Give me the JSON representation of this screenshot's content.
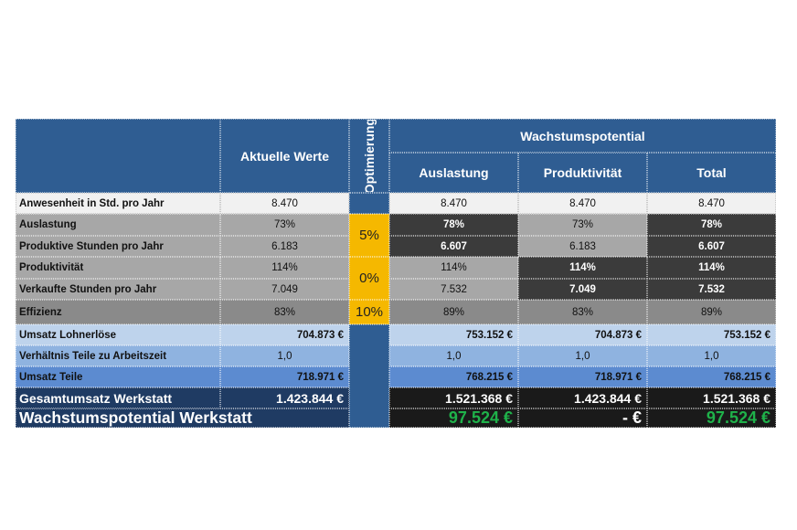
{
  "table": {
    "header": {
      "aktuelle": "Aktuelle Werte",
      "optimierung": "Optimierung",
      "wachstum": "Wachstumspotential",
      "auslastung": "Auslastung",
      "produktivitaet": "Produktivität",
      "total": "Total"
    },
    "rows": [
      {
        "label": "Anwesenheit in Std. pro Jahr",
        "aktuell": "8.470",
        "ausl": "8.470",
        "prod": "8.470",
        "total": "8.470"
      },
      {
        "label": "Auslastung",
        "aktuell": "73%",
        "ausl": "78%",
        "prod": "73%",
        "total": "78%"
      },
      {
        "label": "Produktive Stunden pro Jahr",
        "aktuell": "6.183",
        "ausl": "6.607",
        "prod": "6.183",
        "total": "6.607"
      },
      {
        "label": "Produktivität",
        "aktuell": "114%",
        "ausl": "114%",
        "prod": "114%",
        "total": "114%"
      },
      {
        "label": "Verkaufte Stunden pro Jahr",
        "aktuell": "7.049",
        "ausl": "7.532",
        "prod": "7.049",
        "total": "7.532"
      },
      {
        "label": "Effizienz",
        "aktuell": "83%",
        "ausl": "89%",
        "prod": "83%",
        "total": "89%"
      },
      {
        "label": "Umsatz Lohnerlöse",
        "aktuell": "704.873 €",
        "ausl": "753.152 €",
        "prod": "704.873 €",
        "total": "753.152 €"
      },
      {
        "label": "Verhältnis Teile zu Arbeitszeit",
        "aktuell": "1,0",
        "ausl": "1,0",
        "prod": "1,0",
        "total": "1,0"
      },
      {
        "label": "Umsatz Teile",
        "aktuell": "718.971 €",
        "ausl": "768.215 €",
        "prod": "718.971 €",
        "total": "768.215 €"
      },
      {
        "label": "Gesamtumsatz Werkstatt",
        "aktuell": "1.423.844 €",
        "ausl": "1.521.368 €",
        "prod": "1.423.844 €",
        "total": "1.521.368 €"
      }
    ],
    "summary": {
      "label": "Wachstumspotential Werkstatt",
      "ausl": "97.524 €",
      "prod": "- €",
      "total": "97.524 €"
    },
    "optimierung_values": [
      "5%",
      "0%",
      "10%"
    ]
  },
  "colors": {
    "header_blue": "#2f5d92",
    "optimierung_yellow": "#f5b800",
    "positive_green": "#1fb24a"
  }
}
